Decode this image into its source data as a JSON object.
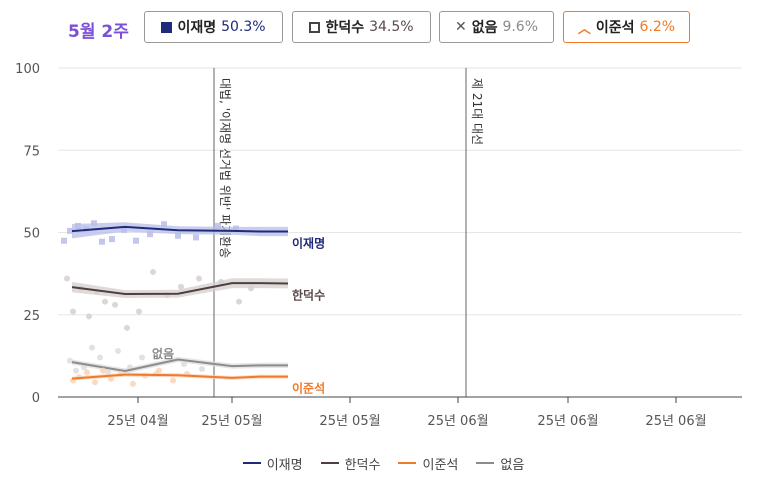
{
  "header": {
    "week": "5월 2주",
    "candidates": [
      {
        "name": "이재명",
        "pct": "50.3%",
        "icon": "filled-square-icon",
        "color": "#1f2a7a"
      },
      {
        "name": "한덕수",
        "pct": "34.5%",
        "icon": "square-outline-icon",
        "color": "#5a4a4a"
      },
      {
        "name": "없음",
        "pct": "9.6%",
        "icon": "cross-icon",
        "color": "#8a8a8a"
      },
      {
        "name": "이준석",
        "pct": "6.2%",
        "icon": "chevron-up-icon",
        "color": "#f07a2a"
      }
    ]
  },
  "chart_data": {
    "type": "line",
    "ylim": [
      0,
      100
    ],
    "yticks": [
      "0",
      "25",
      "50",
      "75",
      "100"
    ],
    "xticks": [
      "25년 04월",
      "25년 05월",
      "25년 05월",
      "25년 06월",
      "25년 06월",
      "25년 06월"
    ],
    "annotations": [
      {
        "text": "대법, '이재명 선거법 위반' 파기환송"
      },
      {
        "text": "제 21대 대선"
      }
    ],
    "series": [
      {
        "name": "이재명",
        "color": "#1f2a7a",
        "band_color": "#b8bde8",
        "label_color": "#1f2a7a",
        "values": [
          50.4,
          51.7,
          50.7,
          50.5,
          50.3,
          50.3
        ],
        "band": [
          2.2,
          1.4,
          1.2,
          1.2,
          1.4,
          1.4
        ],
        "scatter": [
          47.5,
          50.5,
          52,
          51,
          52.8,
          47.2,
          48,
          50.8,
          47.5,
          49.5,
          52.5,
          49,
          48.5,
          52,
          51.2
        ]
      },
      {
        "name": "한덕수",
        "color": "#4e4040",
        "band_color": "#d6cfcf",
        "label_color": "#5a4a4a",
        "values": [
          33.4,
          31.3,
          31.4,
          34.6,
          34.6,
          34.5
        ],
        "band": [
          1.6,
          1.2,
          1.2,
          1.5,
          1.5,
          1.5
        ],
        "scatter": [
          36,
          26,
          33,
          24.5,
          32,
          29,
          28,
          21,
          26,
          38,
          31,
          33.5,
          36,
          35,
          29,
          33
        ]
      },
      {
        "name": "없음",
        "color": "#8c8c8c",
        "band_color": "#dddddd",
        "label_color": "#8a8a8a",
        "values": [
          10.6,
          7.9,
          11.4,
          9.4,
          9.6,
          9.6
        ],
        "band": [
          0.8,
          0.8,
          0.8,
          0.8,
          0.8,
          0.8
        ],
        "scatter": [
          11,
          8,
          9,
          15,
          12,
          7.5,
          14,
          9,
          12,
          7,
          13,
          10,
          8.5
        ]
      },
      {
        "name": "이준석",
        "color": "#f07a2a",
        "band_color": "#fbd2b5",
        "label_color": "#f07a2a",
        "values": [
          5.6,
          6.8,
          6.6,
          5.8,
          6.2,
          6.2
        ],
        "band": [
          0.6,
          0.6,
          0.6,
          0.6,
          0.6,
          0.6
        ],
        "scatter": [
          5,
          6,
          7.5,
          4.5,
          8,
          5.5,
          7,
          4,
          6.5,
          8,
          5,
          7
        ]
      }
    ],
    "inline_labels": [
      "이재명",
      "한덕수",
      "없음",
      "이준석"
    ],
    "legend": {
      "position": "bottom",
      "items": [
        "이재명",
        "한덕수",
        "이준석",
        "없음"
      ]
    },
    "grid": true
  }
}
